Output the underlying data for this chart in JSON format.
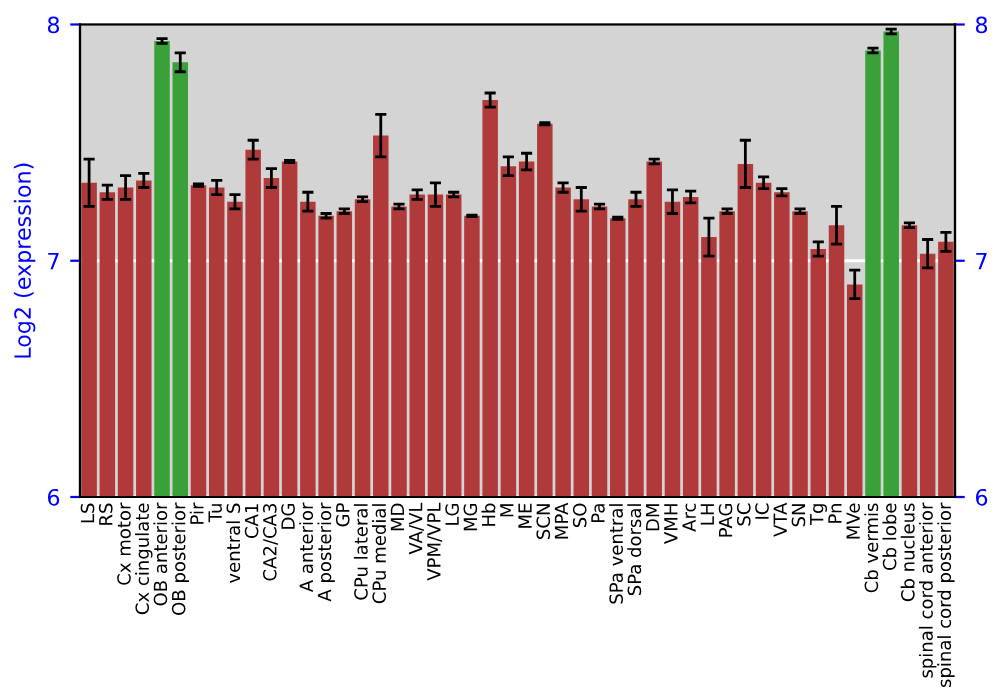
{
  "chart_data": {
    "type": "bar",
    "ylabel": "Log2 (expression)",
    "categories": [
      "LS",
      "RS",
      "Cx motor",
      "Cx cingulate",
      "OB anterior",
      "OB posterior",
      "Pir",
      "Tu",
      "ventral S",
      "CA1",
      "CA2/CA3",
      "DG",
      "A anterior",
      "A posterior",
      "GP",
      "CPu lateral",
      "CPu medial",
      "MD",
      "VA/VL",
      "VPM/VPL",
      "LG",
      "MG",
      "Hb",
      "M",
      "ME",
      "SCN",
      "MPA",
      "SO",
      "Pa",
      "SPa ventral",
      "SPa dorsal",
      "DM",
      "VMH",
      "Arc",
      "LH",
      "PAG",
      "SC",
      "IC",
      "VTA",
      "SN",
      "Tg",
      "Pn",
      "MVe",
      "Cb vermis",
      "Cb lobe",
      "Cb nucleus",
      "spinal cord anterior",
      "spinal cord posterior"
    ],
    "values": [
      7.33,
      7.29,
      7.31,
      7.34,
      7.93,
      7.84,
      7.32,
      7.31,
      7.25,
      7.47,
      7.35,
      7.42,
      7.25,
      7.19,
      7.21,
      7.26,
      7.53,
      7.23,
      7.28,
      7.28,
      7.28,
      7.19,
      7.68,
      7.4,
      7.42,
      7.58,
      7.31,
      7.26,
      7.23,
      7.18,
      7.26,
      7.42,
      7.25,
      7.27,
      7.1,
      7.21,
      7.41,
      7.33,
      7.29,
      7.21,
      7.05,
      7.15,
      6.9,
      7.89,
      7.97,
      7.15,
      7.03,
      7.08
    ],
    "errors": [
      0.1,
      0.03,
      0.05,
      0.03,
      0.01,
      0.04,
      0.005,
      0.03,
      0.03,
      0.04,
      0.04,
      0.005,
      0.04,
      0.01,
      0.01,
      0.01,
      0.09,
      0.01,
      0.02,
      0.05,
      0.01,
      0.003,
      0.03,
      0.04,
      0.035,
      0.005,
      0.02,
      0.05,
      0.01,
      0.005,
      0.03,
      0.01,
      0.05,
      0.025,
      0.08,
      0.01,
      0.1,
      0.025,
      0.015,
      0.01,
      0.03,
      0.08,
      0.06,
      0.01,
      0.01,
      0.01,
      0.06,
      0.04
    ],
    "colors": [
      "#b03a3a",
      "#b03a3a",
      "#b03a3a",
      "#b03a3a",
      "#3aa03a",
      "#3aa03a",
      "#b03a3a",
      "#b03a3a",
      "#b03a3a",
      "#b03a3a",
      "#b03a3a",
      "#b03a3a",
      "#b03a3a",
      "#b03a3a",
      "#b03a3a",
      "#b03a3a",
      "#b03a3a",
      "#b03a3a",
      "#b03a3a",
      "#b03a3a",
      "#b03a3a",
      "#b03a3a",
      "#b03a3a",
      "#b03a3a",
      "#b03a3a",
      "#b03a3a",
      "#b03a3a",
      "#b03a3a",
      "#b03a3a",
      "#b03a3a",
      "#b03a3a",
      "#b03a3a",
      "#b03a3a",
      "#b03a3a",
      "#b03a3a",
      "#b03a3a",
      "#b03a3a",
      "#b03a3a",
      "#b03a3a",
      "#b03a3a",
      "#b03a3a",
      "#b03a3a",
      "#b03a3a",
      "#3aa03a",
      "#3aa03a",
      "#b03a3a",
      "#b03a3a",
      "#b03a3a"
    ],
    "ylim": [
      6,
      8
    ],
    "yticks": [
      6,
      7,
      8
    ],
    "y2lim": [
      6,
      8
    ],
    "y2ticks": [
      6,
      7,
      8
    ],
    "grid": "y"
  }
}
